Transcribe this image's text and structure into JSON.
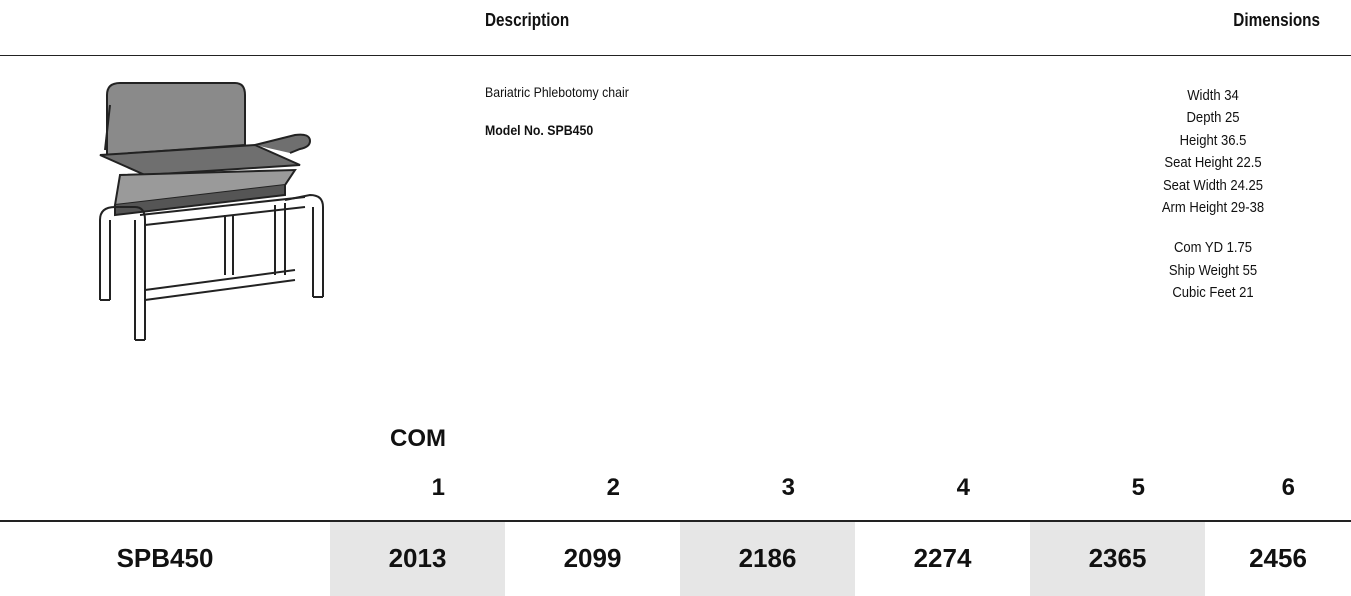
{
  "header": {
    "description": "Description",
    "dimensions": "Dimensions"
  },
  "product": {
    "description": "Bariatric Phlebotomy chair",
    "model": "Model No. SPB450"
  },
  "dimensions": {
    "groups": [
      [
        "Width 34",
        "Depth 25",
        "Height 36.5",
        "Seat Height 22.5",
        "Seat Width 24.25",
        "Arm Height 29-38"
      ],
      [
        "Com YD 1.75",
        "Ship Weight 55",
        "Cubic Feet 21"
      ]
    ]
  },
  "table": {
    "grade_label": "COM",
    "columns": [
      "1",
      "2",
      "3",
      "4",
      "5",
      "6"
    ],
    "rows": [
      {
        "model": "SPB450",
        "prices": [
          "2013",
          "2099",
          "2186",
          "2274",
          "2365",
          "2456"
        ]
      }
    ]
  }
}
